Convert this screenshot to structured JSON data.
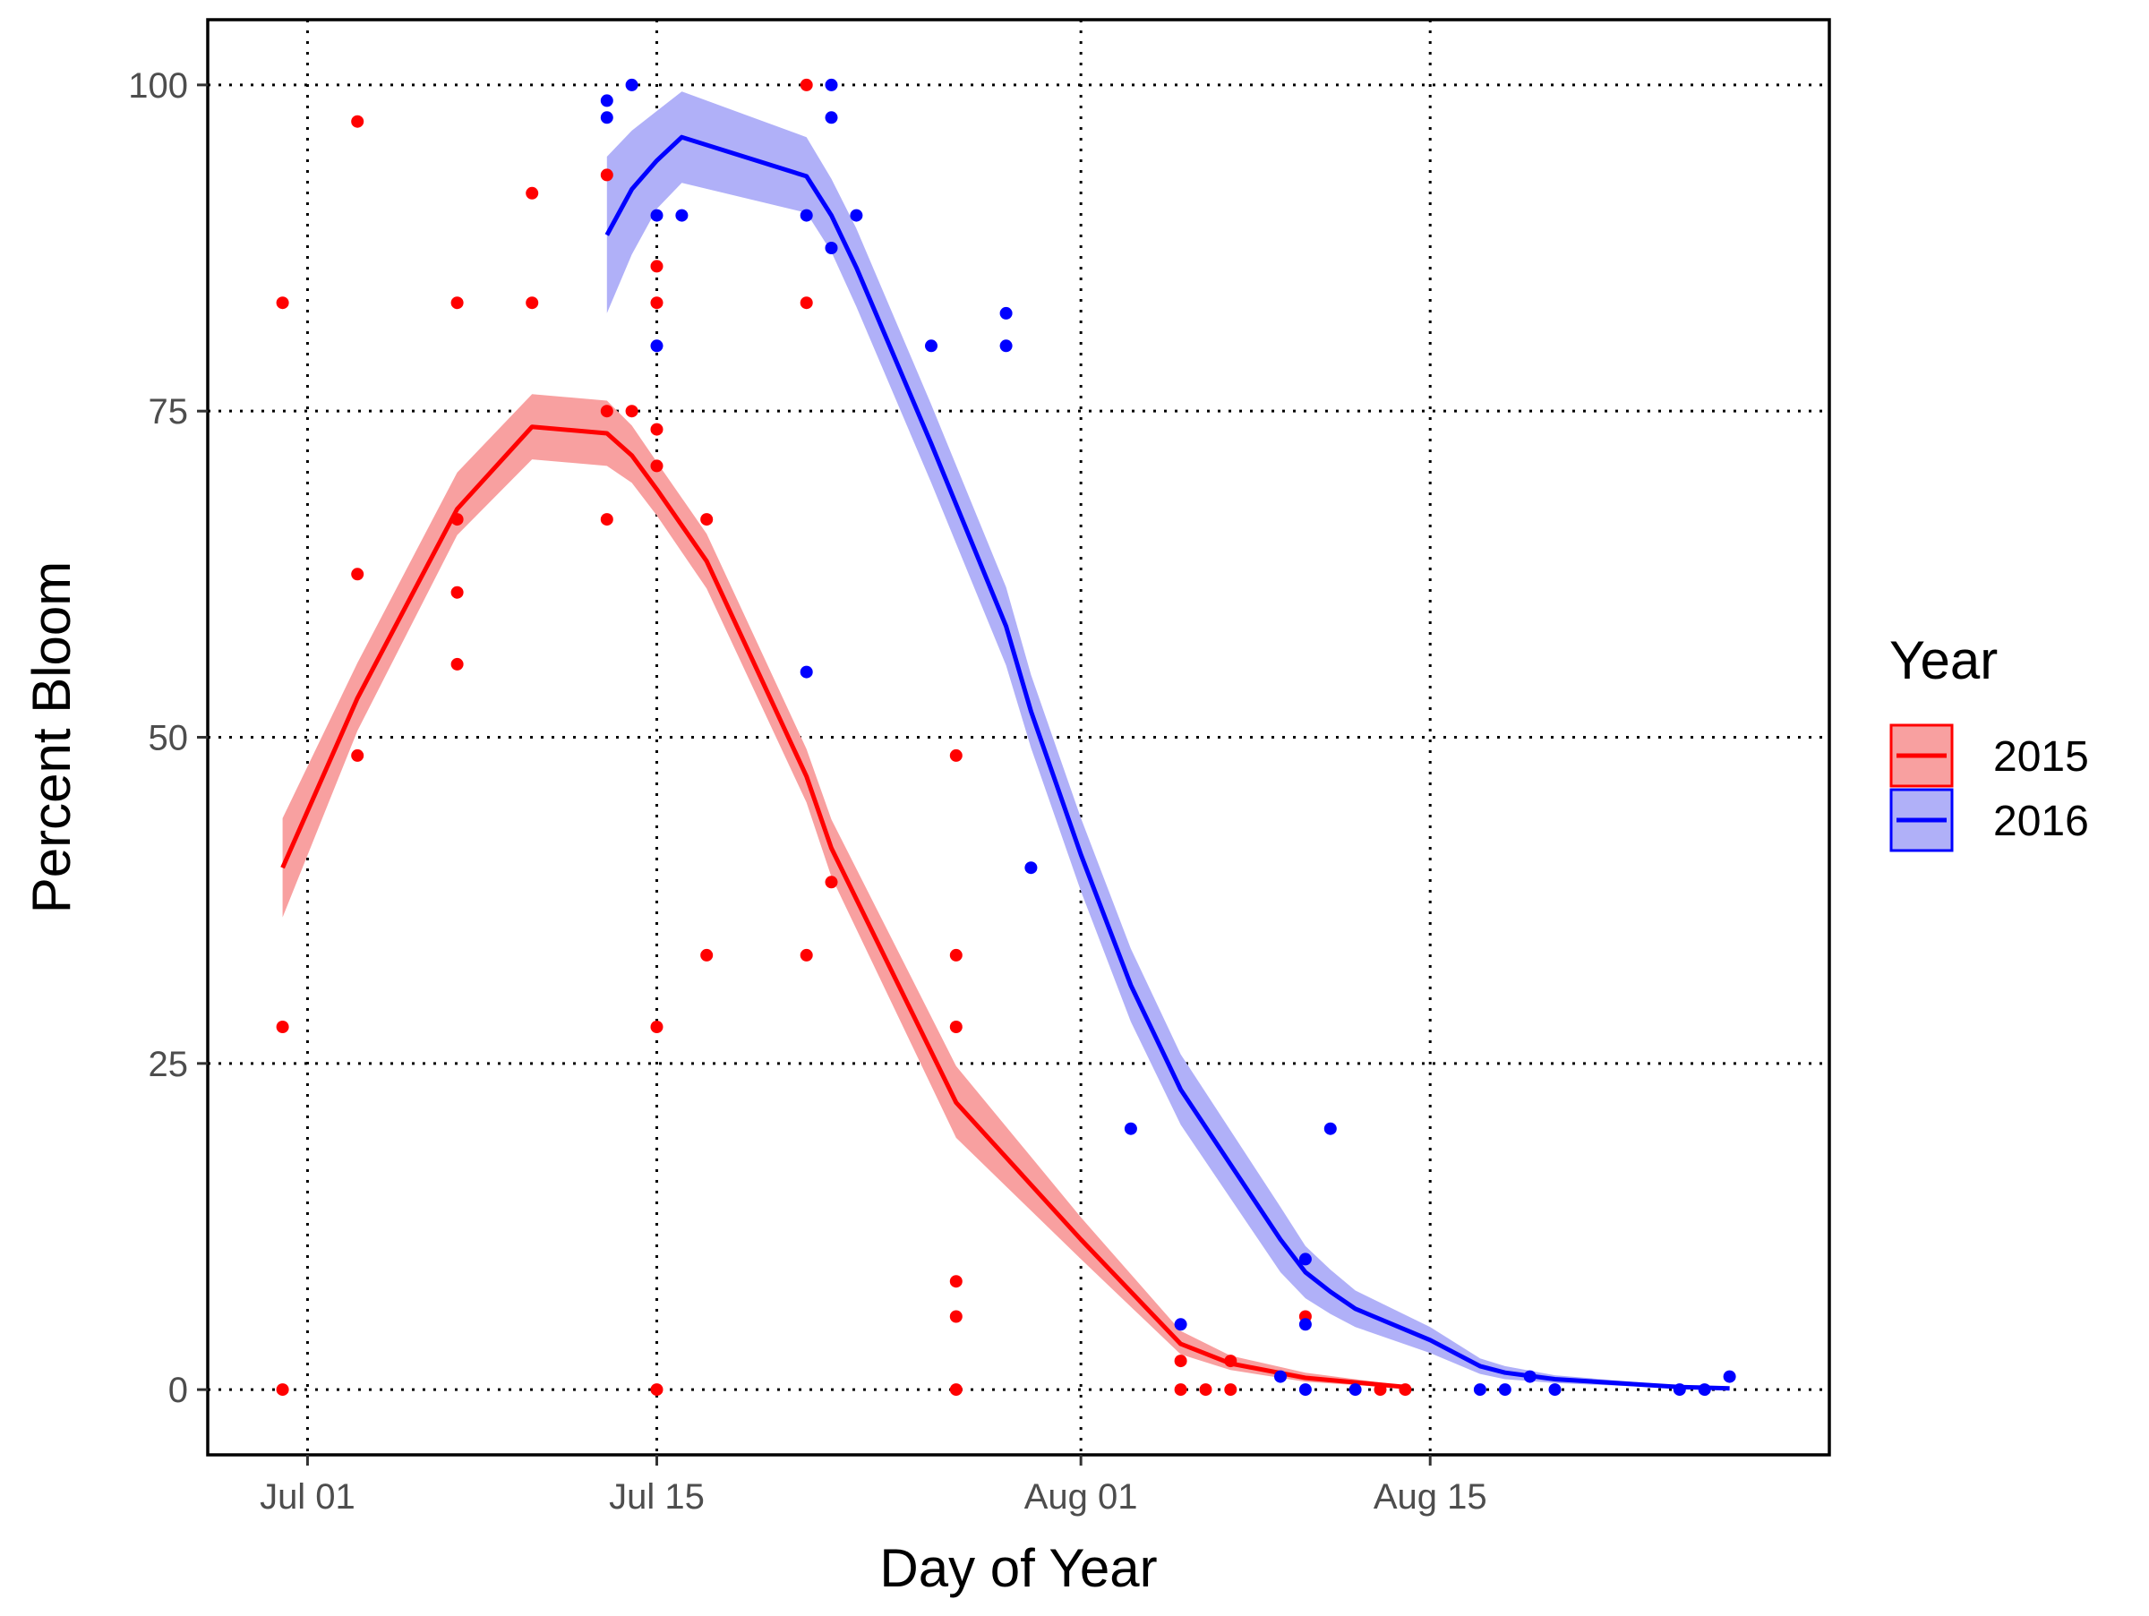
{
  "chart_data": {
    "type": "scatter",
    "title": "",
    "xlabel": "Day of Year",
    "ylabel": "Percent Bloom",
    "x_unit": "date (2015/2016 plotted on a common calendar)",
    "xlim": [
      "Jun 27",
      "Aug 31"
    ],
    "ylim": [
      -5,
      105
    ],
    "x_ticks": [
      {
        "date": "Jul 01",
        "label": "Jul 01"
      },
      {
        "date": "Jul 15",
        "label": "Jul 15"
      },
      {
        "date": "Aug 01",
        "label": "Aug 01"
      },
      {
        "date": "Aug 15",
        "label": "Aug 15"
      }
    ],
    "y_ticks": [
      0,
      25,
      50,
      75,
      100
    ],
    "y_tick_labels": [
      "0",
      "25",
      "50",
      "75",
      "100"
    ],
    "grid": "dotted major gridlines",
    "legend": {
      "title": "Year",
      "position": "right"
    },
    "series": [
      {
        "name": "2015",
        "color": "#ff0000",
        "band_color": "#f8a0a0",
        "points": [
          [
            "Jun 30",
            83.3
          ],
          [
            "Jun 30",
            27.8
          ],
          [
            "Jun 30",
            0
          ],
          [
            "Jul 03",
            97.2
          ],
          [
            "Jul 03",
            62.5
          ],
          [
            "Jul 03",
            48.6
          ],
          [
            "Jul 07",
            83.3
          ],
          [
            "Jul 07",
            66.7
          ],
          [
            "Jul 07",
            61.1
          ],
          [
            "Jul 07",
            55.6
          ],
          [
            "Jul 10",
            91.7
          ],
          [
            "Jul 10",
            83.3
          ],
          [
            "Jul 13",
            93.1
          ],
          [
            "Jul 13",
            75.0
          ],
          [
            "Jul 13",
            66.7
          ],
          [
            "Jul 14",
            75.0
          ],
          [
            "Jul 15",
            86.1
          ],
          [
            "Jul 15",
            83.3
          ],
          [
            "Jul 15",
            73.6
          ],
          [
            "Jul 15",
            70.8
          ],
          [
            "Jul 15",
            27.8
          ],
          [
            "Jul 15",
            0
          ],
          [
            "Jul 17",
            66.7
          ],
          [
            "Jul 17",
            33.3
          ],
          [
            "Jul 21",
            100.0
          ],
          [
            "Jul 21",
            83.3
          ],
          [
            "Jul 21",
            33.3
          ],
          [
            "Jul 22",
            38.9
          ],
          [
            "Jul 27",
            48.6
          ],
          [
            "Jul 27",
            33.3
          ],
          [
            "Jul 27",
            27.8
          ],
          [
            "Jul 27",
            8.3
          ],
          [
            "Jul 27",
            5.6
          ],
          [
            "Jul 27",
            0
          ],
          [
            "Aug 05",
            2.2
          ],
          [
            "Aug 05",
            0
          ],
          [
            "Aug 06",
            0
          ],
          [
            "Aug 07",
            2.2
          ],
          [
            "Aug 07",
            0
          ],
          [
            "Aug 10",
            5.6
          ],
          [
            "Aug 13",
            0
          ],
          [
            "Aug 14",
            0
          ]
        ],
        "fit": [
          [
            "Jun 30",
            40.0
          ],
          [
            "Jul 03",
            53.0
          ],
          [
            "Jul 07",
            67.5
          ],
          [
            "Jul 10",
            73.8
          ],
          [
            "Jul 13",
            73.3
          ],
          [
            "Jul 14",
            71.6
          ],
          [
            "Jul 15",
            69.0
          ],
          [
            "Jul 17",
            63.5
          ],
          [
            "Jul 21",
            47.0
          ],
          [
            "Jul 22",
            41.5
          ],
          [
            "Jul 27",
            22.0
          ],
          [
            "Aug 01",
            11.5
          ],
          [
            "Aug 05",
            3.5
          ],
          [
            "Aug 07",
            2.0
          ],
          [
            "Aug 10",
            0.9
          ],
          [
            "Aug 14",
            0.2
          ]
        ],
        "band": [
          [
            "Jun 30",
            36.2,
            43.8
          ],
          [
            "Jul 03",
            50.5,
            55.7
          ],
          [
            "Jul 07",
            65.5,
            70.3
          ],
          [
            "Jul 10",
            71.3,
            76.3
          ],
          [
            "Jul 13",
            70.8,
            75.8
          ],
          [
            "Jul 14",
            69.5,
            73.9
          ],
          [
            "Jul 15",
            67.0,
            71.1
          ],
          [
            "Jul 17",
            61.4,
            65.6
          ],
          [
            "Jul 21",
            45.0,
            49.1
          ],
          [
            "Jul 22",
            39.3,
            43.7
          ],
          [
            "Jul 27",
            19.3,
            24.8
          ],
          [
            "Aug 01",
            10.0,
            13.2
          ],
          [
            "Aug 05",
            2.7,
            4.5
          ],
          [
            "Aug 07",
            1.5,
            2.6
          ],
          [
            "Aug 10",
            0.6,
            1.3
          ],
          [
            "Aug 14",
            0.1,
            0.3
          ]
        ]
      },
      {
        "name": "2016",
        "color": "#0000ff",
        "band_color": "#b0b0f8",
        "points": [
          [
            "Jul 13",
            98.8
          ],
          [
            "Jul 13",
            97.5
          ],
          [
            "Jul 14",
            100.0
          ],
          [
            "Jul 15",
            90.0
          ],
          [
            "Jul 15",
            80.0
          ],
          [
            "Jul 16",
            90.0
          ],
          [
            "Jul 21",
            90.0
          ],
          [
            "Jul 21",
            55.0
          ],
          [
            "Jul 22",
            100.0
          ],
          [
            "Jul 22",
            97.5
          ],
          [
            "Jul 22",
            87.5
          ],
          [
            "Jul 23",
            90.0
          ],
          [
            "Jul 26",
            80.0
          ],
          [
            "Jul 29",
            82.5
          ],
          [
            "Jul 29",
            80.0
          ],
          [
            "Jul 30",
            40.0
          ],
          [
            "Aug 03",
            20.0
          ],
          [
            "Aug 05",
            5.0
          ],
          [
            "Aug 09",
            1.0
          ],
          [
            "Aug 10",
            10.0
          ],
          [
            "Aug 10",
            5.0
          ],
          [
            "Aug 10",
            0
          ],
          [
            "Aug 11",
            20.0
          ],
          [
            "Aug 12",
            0
          ],
          [
            "Aug 17",
            0
          ],
          [
            "Aug 18",
            0
          ],
          [
            "Aug 19",
            1.0
          ],
          [
            "Aug 20",
            0
          ],
          [
            "Aug 25",
            0
          ],
          [
            "Aug 26",
            0
          ],
          [
            "Aug 27",
            1.0
          ]
        ],
        "fit": [
          [
            "Jul 13",
            88.5
          ],
          [
            "Jul 14",
            92.0
          ],
          [
            "Jul 15",
            94.2
          ],
          [
            "Jul 16",
            96.0
          ],
          [
            "Jul 21",
            93.0
          ],
          [
            "Jul 22",
            90.0
          ],
          [
            "Jul 23",
            86.0
          ],
          [
            "Jul 26",
            72.5
          ],
          [
            "Jul 29",
            58.5
          ],
          [
            "Jul 30",
            52.0
          ],
          [
            "Aug 01",
            41.0
          ],
          [
            "Aug 03",
            31.0
          ],
          [
            "Aug 05",
            23.0
          ],
          [
            "Aug 09",
            11.5
          ],
          [
            "Aug 10",
            9.0
          ],
          [
            "Aug 11",
            7.5
          ],
          [
            "Aug 12",
            6.2
          ],
          [
            "Aug 15",
            3.8
          ],
          [
            "Aug 17",
            1.8
          ],
          [
            "Aug 18",
            1.3
          ],
          [
            "Aug 20",
            0.8
          ],
          [
            "Aug 25",
            0.2
          ],
          [
            "Aug 27",
            0.1
          ]
        ],
        "band": [
          [
            "Jul 13",
            82.5,
            94.5
          ],
          [
            "Jul 14",
            87.0,
            96.5
          ],
          [
            "Jul 15",
            90.5,
            98.0
          ],
          [
            "Jul 16",
            92.5,
            99.5
          ],
          [
            "Jul 21",
            90.2,
            96.0
          ],
          [
            "Jul 22",
            87.2,
            92.8
          ],
          [
            "Jul 23",
            83.0,
            89.0
          ],
          [
            "Jul 26",
            69.5,
            75.5
          ],
          [
            "Jul 29",
            55.5,
            61.5
          ],
          [
            "Jul 30",
            49.2,
            54.8
          ],
          [
            "Aug 01",
            38.2,
            43.8
          ],
          [
            "Aug 03",
            28.2,
            33.8
          ],
          [
            "Aug 05",
            20.3,
            25.7
          ],
          [
            "Aug 09",
            9.0,
            14.0
          ],
          [
            "Aug 10",
            7.0,
            11.0
          ],
          [
            "Aug 11",
            5.8,
            9.2
          ],
          [
            "Aug 12",
            4.8,
            7.6
          ],
          [
            "Aug 15",
            2.8,
            4.8
          ],
          [
            "Aug 17",
            1.2,
            2.4
          ],
          [
            "Aug 18",
            0.8,
            1.8
          ],
          [
            "Aug 20",
            0.5,
            1.1
          ],
          [
            "Aug 25",
            0.1,
            0.3
          ],
          [
            "Aug 27",
            0.0,
            0.2
          ]
        ]
      }
    ]
  }
}
